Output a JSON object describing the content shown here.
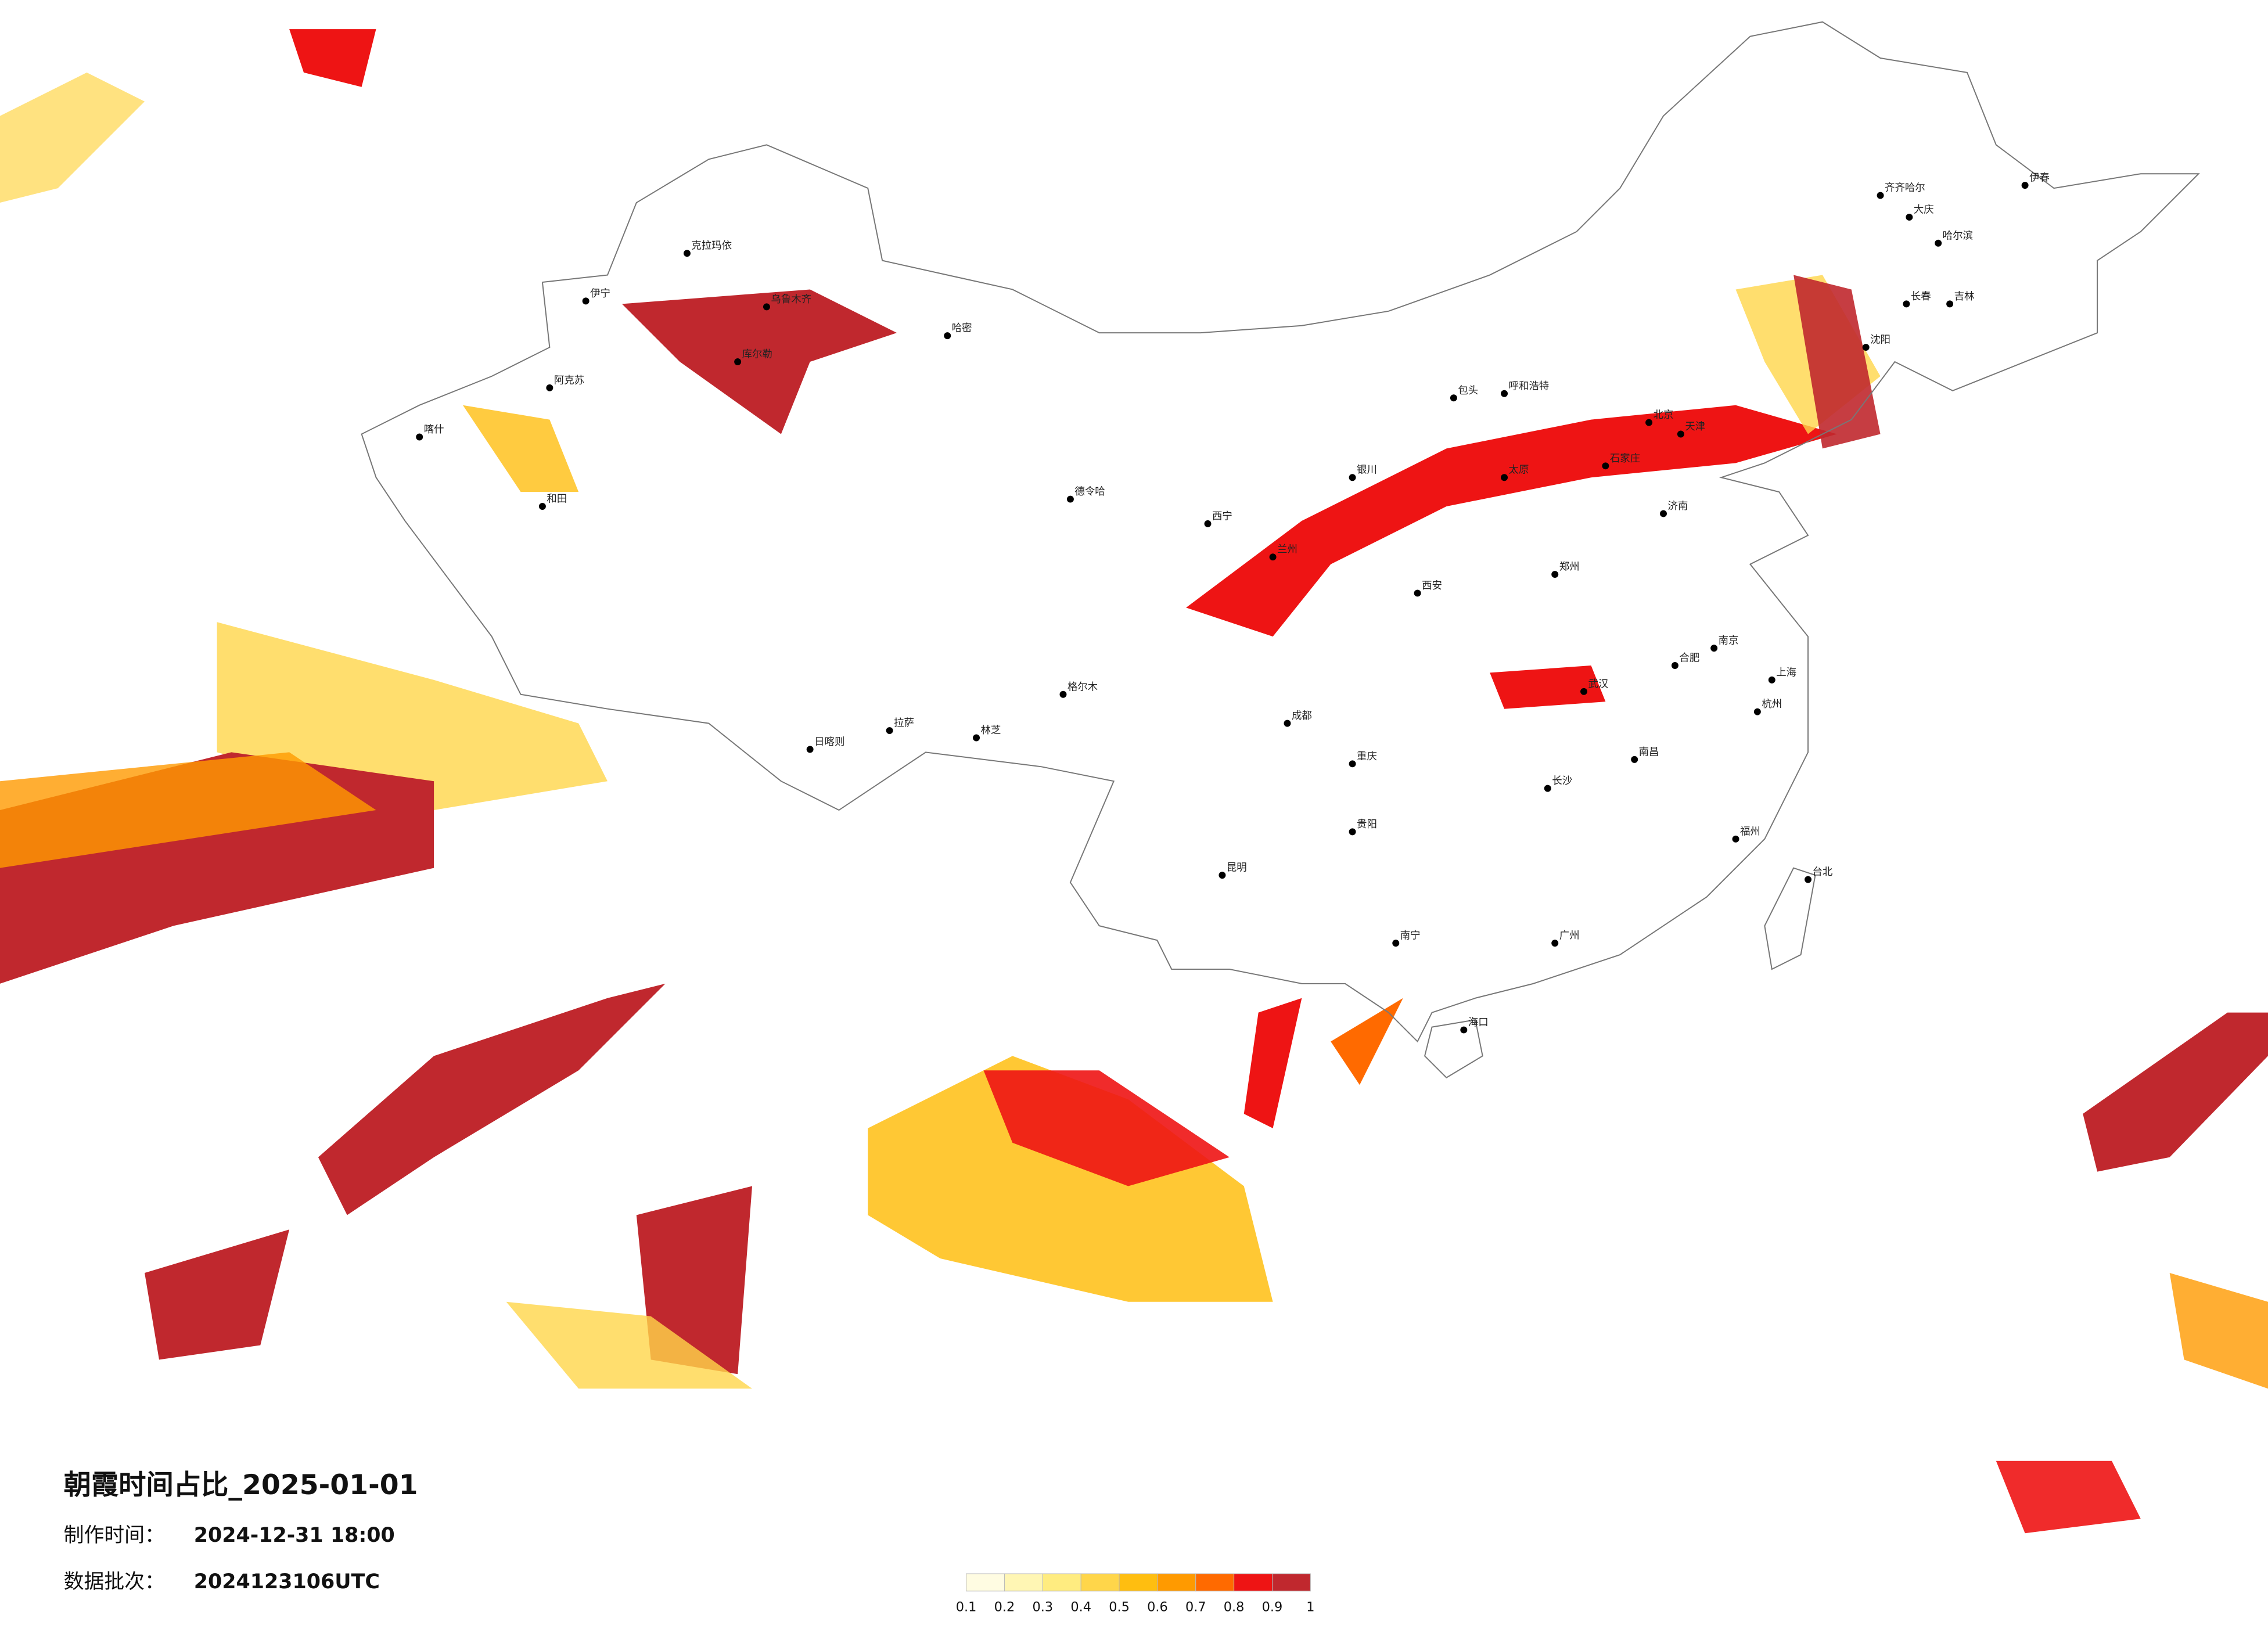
{
  "header": {
    "title": "朝霞时间占比_2025-01-01",
    "made_label": "制作时间：",
    "made_time": "2024-12-31 18:00",
    "batch_label": "数据批次：",
    "batch": "2024123106UTC"
  },
  "colorbar": {
    "ticks": [
      0.1,
      0.2,
      0.3,
      0.4,
      0.5,
      0.6,
      0.7,
      0.8,
      0.9,
      1
    ],
    "colors": [
      "#fffce2",
      "#fff6b4",
      "#ffec80",
      "#ffd64a",
      "#ffbe10",
      "#ff9a00",
      "#ff6a00",
      "#ee1414",
      "#c0282e"
    ]
  },
  "cities": [
    "克拉玛依",
    "伊宁",
    "乌鲁木齐",
    "哈密",
    "阿克苏",
    "喀什",
    "和田",
    "库尔勒",
    "格尔木",
    "德令哈",
    "西宁",
    "兰州",
    "银川",
    "呼和浩特",
    "包头",
    "北京",
    "天津",
    "石家庄",
    "太原",
    "济南",
    "郑州",
    "西安",
    "成都",
    "重庆",
    "拉萨",
    "日喀则",
    "林芝",
    "昆明",
    "贵阳",
    "南宁",
    "长沙",
    "武汉",
    "南昌",
    "合肥",
    "南京",
    "上海",
    "杭州",
    "福州",
    "广州",
    "海口",
    "台北",
    "沈阳",
    "长春",
    "哈尔滨",
    "齐齐哈尔",
    "大庆",
    "吉林",
    "伊春"
  ]
}
